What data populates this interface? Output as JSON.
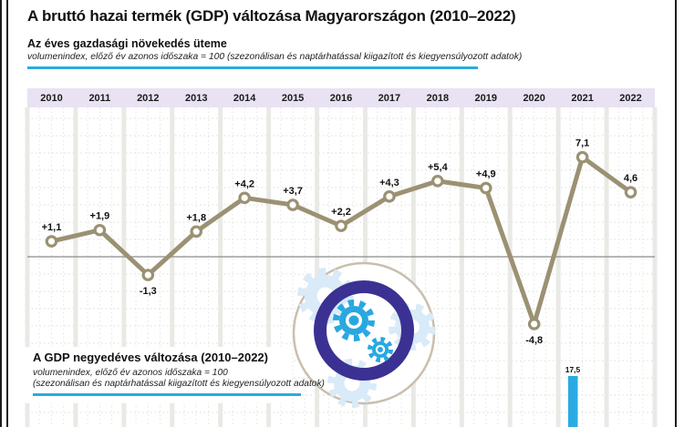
{
  "title": "A bruttó hazai termék (GDP) változása Magyarországon (2010–2022)",
  "section_annual": {
    "heading": "Az éves gazdasági növekedés üteme",
    "subnote": "volumenindex, előző év azonos időszaka = 100 (szezonálisan és naptárhatással kiigazított és kiegyensúlyozott adatok)"
  },
  "section_quarterly": {
    "heading": "A GDP negyedéves változása (2010–2022)",
    "subnote_line1": "volumenindex, előző év azonos időszaka = 100",
    "subnote_line2": "(szezonálisan és naptárhatással kiigazított és kiegyensúlyozott adatok)"
  },
  "icon": {
    "name": "gears-icon"
  },
  "colors": {
    "accent_blue": "#29abe2",
    "line_olive": "#9b9173",
    "year_band_lavender": "#e9e2f2",
    "ring_purple": "#3b3193",
    "circle_beige": "#c9bfad",
    "gear_light_blue": "#d9eaf8",
    "grid_band": "#e9e9e5",
    "zero_line": "#8c8c8c"
  },
  "chart_data": [
    {
      "type": "line",
      "title": "Az éves gazdasági növekedés üteme",
      "categories": [
        "2010",
        "2011",
        "2012",
        "2013",
        "2014",
        "2015",
        "2016",
        "2017",
        "2018",
        "2019",
        "2020",
        "2021",
        "2022"
      ],
      "values": [
        1.1,
        1.9,
        -1.3,
        1.8,
        4.2,
        3.7,
        2.2,
        4.3,
        5.4,
        4.9,
        -4.8,
        7.1,
        4.6
      ],
      "labels": [
        "+1,1",
        "+1,9",
        "-1,3",
        "+1,8",
        "+4,2",
        "+3,7",
        "+2,2",
        "+4,3",
        "+5,4",
        "+4,9",
        "-4,8",
        "7,1",
        "4,6"
      ],
      "line_color": "#9b9173",
      "marker": "open-circle",
      "zero_line": true,
      "grid": "dashed horizontal lines, solid vertical year separators, dashed quarterly separators",
      "legend": "none"
    },
    {
      "type": "bar",
      "title": "A GDP negyedéves változása (2010–2022)",
      "values": [
        17.5
      ],
      "labels": [
        "17,5"
      ],
      "bar_color": "#29abe2",
      "visibility": "only top of one bar visible at bottom crop of image"
    }
  ]
}
